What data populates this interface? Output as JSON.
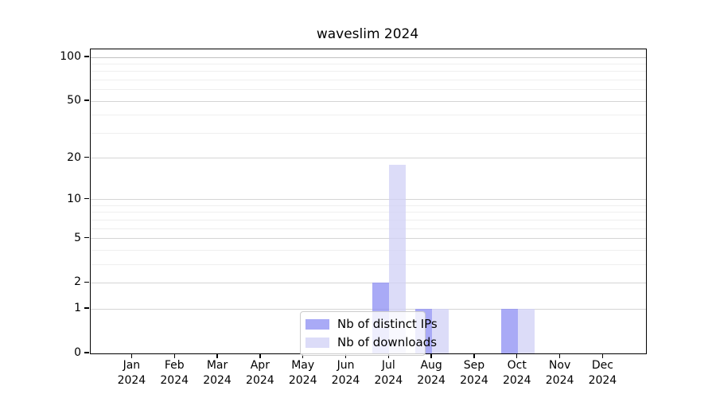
{
  "chart_data": {
    "type": "bar",
    "title": "waveslim 2024",
    "categories": [
      "Jan",
      "Feb",
      "Mar",
      "Apr",
      "May",
      "Jun",
      "Jul",
      "Aug",
      "Sep",
      "Oct",
      "Nov",
      "Dec"
    ],
    "category_year": "2024",
    "series": [
      {
        "name": "Nb of distinct IPs",
        "color": "rgba(140,142,243,0.75)",
        "values": [
          0,
          0,
          0,
          0,
          0,
          0,
          2,
          1,
          0,
          1,
          0,
          0
        ]
      },
      {
        "name": "Nb of downloads",
        "color": "rgba(208,208,246,0.75)",
        "values": [
          0,
          0,
          0,
          0,
          0,
          0,
          18,
          1,
          0,
          1,
          0,
          0
        ]
      }
    ],
    "xlabel": "",
    "ylabel": "",
    "y_scale": "log1p",
    "y_ticks": [
      0,
      1,
      2,
      5,
      10,
      20,
      50,
      100
    ],
    "y_minor_gridlines": [
      3,
      4,
      6,
      7,
      8,
      9,
      30,
      40,
      60,
      70,
      80,
      90
    ],
    "ylim": [
      0,
      113
    ],
    "grid": "horizontal-major-and-minor",
    "legend_position": "lower-center-inside"
  },
  "colors": {
    "axis": "#000000",
    "major_grid": "#d5d5d5",
    "top_major_grid": "#c0c0c0",
    "minor_grid": "#efefef",
    "legend_border": "#cccccc",
    "legend_bg": "rgba(255,255,255,0.8)"
  }
}
